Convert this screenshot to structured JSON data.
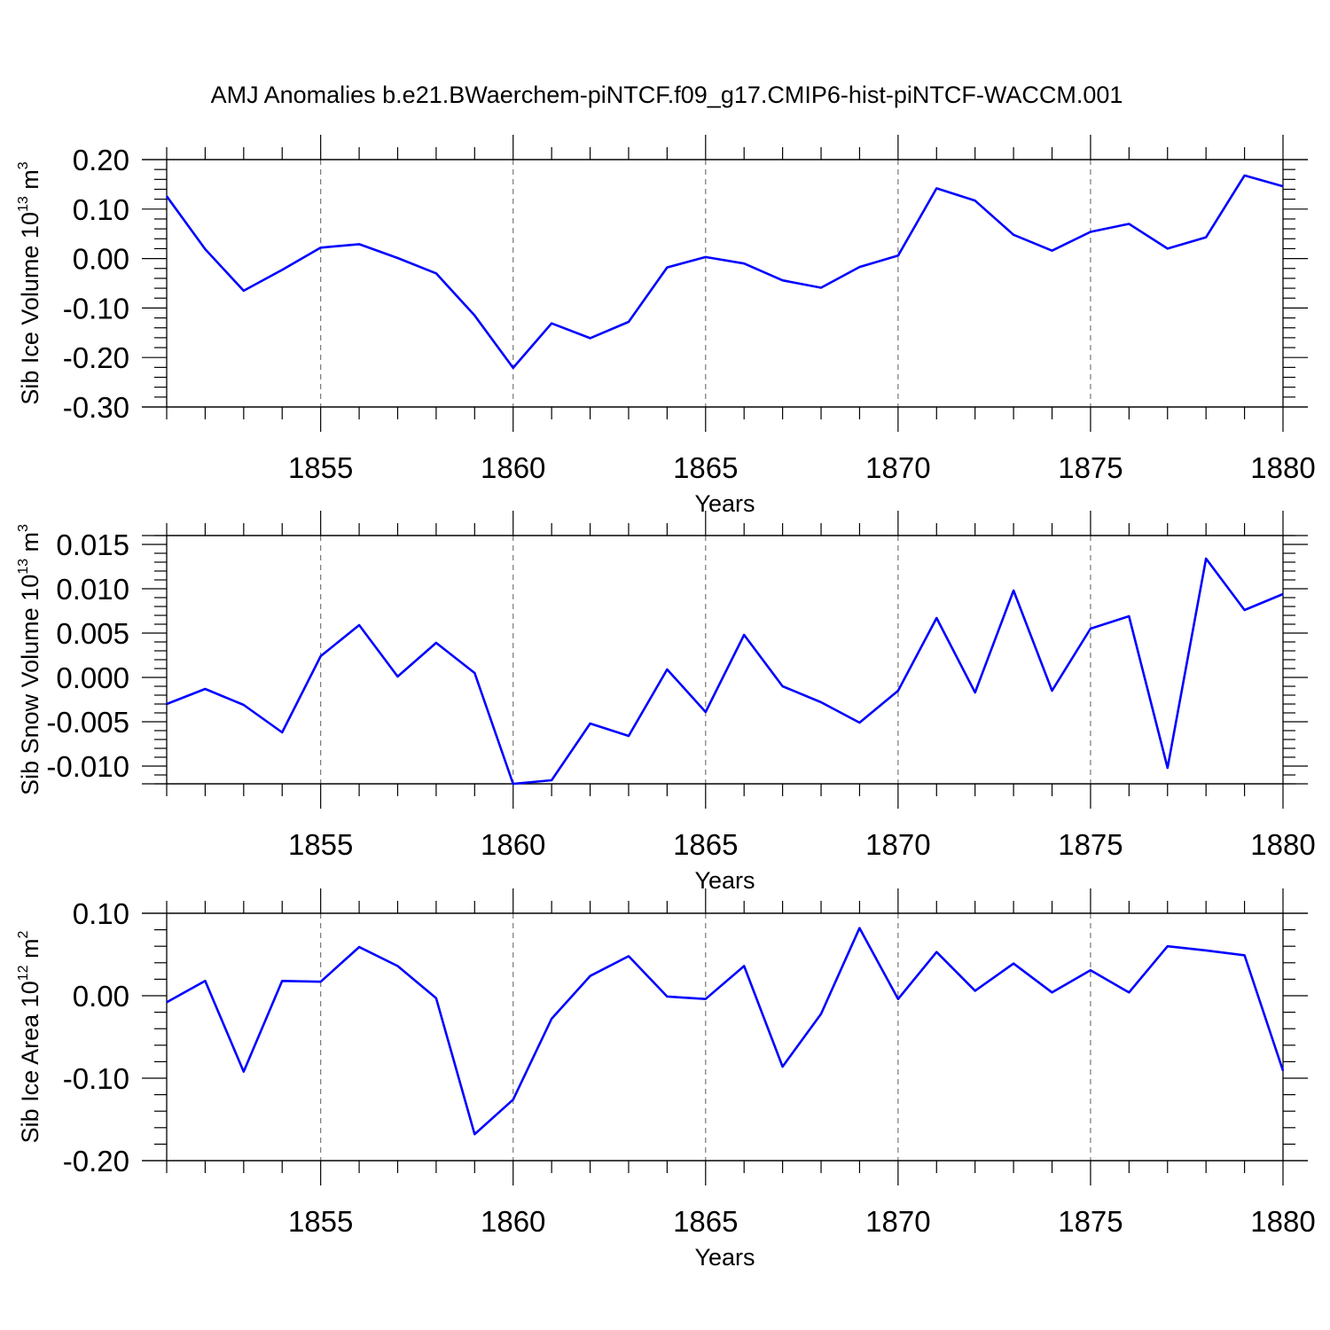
{
  "title": "AMJ Anomalies b.e21.BWaerchem-piNTCF.f09_g17.CMIP6-hist-piNTCF-WACCM.001",
  "colors": {
    "line": "#0000ff",
    "grid": "#777777",
    "axis": "#000000"
  },
  "chart_data": [
    {
      "type": "line",
      "ylabel": {
        "prefix": "Sib Ice Volume 10",
        "exp": "13",
        "unit": " m",
        "unit_exp": "3"
      },
      "xlabel": "Years",
      "xlim": [
        1851,
        1880
      ],
      "ylim": [
        -0.3,
        0.2
      ],
      "yticks": [
        {
          "v": 0.2,
          "label": "0.20"
        },
        {
          "v": 0.1,
          "label": "0.10"
        },
        {
          "v": 0.0,
          "label": "0.00"
        },
        {
          "v": -0.1,
          "label": "-0.10"
        },
        {
          "v": -0.2,
          "label": "-0.20"
        },
        {
          "v": -0.3,
          "label": "-0.30"
        }
      ],
      "xticks": [
        {
          "v": 1855,
          "label": "1855"
        },
        {
          "v": 1860,
          "label": "1860"
        },
        {
          "v": 1865,
          "label": "1865"
        },
        {
          "v": 1870,
          "label": "1870"
        },
        {
          "v": 1875,
          "label": "1875"
        },
        {
          "v": 1880,
          "label": "1880"
        }
      ],
      "x": [
        1851,
        1852,
        1853,
        1854,
        1855,
        1856,
        1857,
        1858,
        1859,
        1860,
        1861,
        1862,
        1863,
        1864,
        1865,
        1866,
        1867,
        1868,
        1869,
        1870,
        1871,
        1872,
        1873,
        1874,
        1875,
        1876,
        1877,
        1878,
        1879,
        1880
      ],
      "values": [
        0.126,
        0.019,
        -0.065,
        -0.023,
        0.022,
        0.029,
        0.001,
        -0.03,
        -0.115,
        -0.221,
        -0.131,
        -0.161,
        -0.128,
        -0.018,
        0.003,
        -0.01,
        -0.044,
        -0.059,
        -0.017,
        0.006,
        0.142,
        0.117,
        0.048,
        0.016,
        0.054,
        0.07,
        0.02,
        0.043,
        0.168,
        0.146
      ]
    },
    {
      "type": "line",
      "ylabel": {
        "prefix": "Sib Snow Volume 10",
        "exp": "13",
        "unit": " m",
        "unit_exp": "3"
      },
      "xlabel": "Years",
      "xlim": [
        1851,
        1880
      ],
      "ylim": [
        -0.012,
        0.016
      ],
      "yticks": [
        {
          "v": 0.015,
          "label": "0.015"
        },
        {
          "v": 0.01,
          "label": "0.010"
        },
        {
          "v": 0.005,
          "label": "0.005"
        },
        {
          "v": 0.0,
          "label": "0.000"
        },
        {
          "v": -0.005,
          "label": "-0.005"
        },
        {
          "v": -0.01,
          "label": "-0.010"
        }
      ],
      "xticks": [
        {
          "v": 1855,
          "label": "1855"
        },
        {
          "v": 1860,
          "label": "1860"
        },
        {
          "v": 1865,
          "label": "1865"
        },
        {
          "v": 1870,
          "label": "1870"
        },
        {
          "v": 1875,
          "label": "1875"
        },
        {
          "v": 1880,
          "label": "1880"
        }
      ],
      "x": [
        1851,
        1852,
        1853,
        1854,
        1855,
        1856,
        1857,
        1858,
        1859,
        1860,
        1861,
        1862,
        1863,
        1864,
        1865,
        1866,
        1867,
        1868,
        1869,
        1870,
        1871,
        1872,
        1873,
        1874,
        1875,
        1876,
        1877,
        1878,
        1879,
        1880
      ],
      "values": [
        -0.003,
        -0.0013,
        -0.0031,
        -0.0062,
        0.0024,
        0.0059,
        0.0001,
        0.0039,
        0.0005,
        -0.012,
        -0.0116,
        -0.0052,
        -0.0066,
        0.0009,
        -0.0039,
        0.0048,
        -0.001,
        -0.0028,
        -0.0051,
        -0.0015,
        0.0067,
        -0.0017,
        0.0098,
        -0.0015,
        0.0055,
        0.0069,
        -0.0102,
        0.0134,
        0.0076,
        0.0094
      ]
    },
    {
      "type": "line",
      "ylabel": {
        "prefix": "Sib Ice Area 10",
        "exp": "12",
        "unit": " m",
        "unit_exp": "2"
      },
      "xlabel": "Years",
      "xlim": [
        1851,
        1880
      ],
      "ylim": [
        -0.2,
        0.1
      ],
      "yticks": [
        {
          "v": 0.1,
          "label": "0.10"
        },
        {
          "v": 0.0,
          "label": "0.00"
        },
        {
          "v": -0.1,
          "label": "-0.10"
        },
        {
          "v": -0.2,
          "label": "-0.20"
        }
      ],
      "xticks": [
        {
          "v": 1855,
          "label": "1855"
        },
        {
          "v": 1860,
          "label": "1860"
        },
        {
          "v": 1865,
          "label": "1865"
        },
        {
          "v": 1870,
          "label": "1870"
        },
        {
          "v": 1875,
          "label": "1875"
        },
        {
          "v": 1880,
          "label": "1880"
        }
      ],
      "x": [
        1851,
        1852,
        1853,
        1854,
        1855,
        1856,
        1857,
        1858,
        1859,
        1860,
        1861,
        1862,
        1863,
        1864,
        1865,
        1866,
        1867,
        1868,
        1869,
        1870,
        1871,
        1872,
        1873,
        1874,
        1875,
        1876,
        1877,
        1878,
        1879,
        1880
      ],
      "values": [
        -0.008,
        0.018,
        -0.092,
        0.018,
        0.017,
        0.059,
        0.036,
        -0.003,
        -0.168,
        -0.126,
        -0.028,
        0.024,
        0.048,
        -0.001,
        -0.004,
        0.036,
        -0.086,
        -0.022,
        0.082,
        -0.004,
        0.053,
        0.006,
        0.039,
        0.004,
        0.031,
        0.004,
        0.06,
        0.055,
        0.049,
        -0.091
      ]
    }
  ]
}
